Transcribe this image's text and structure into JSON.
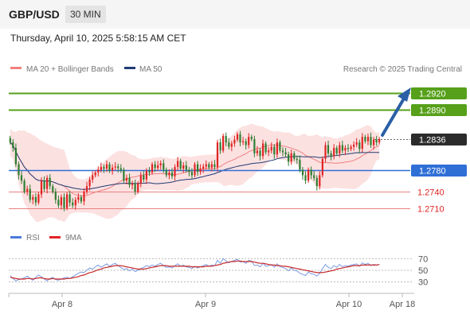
{
  "header": {
    "symbol": "GBP/USD",
    "timeframe": "30 MIN"
  },
  "timestamp": "Thursday, April 10, 2025 5:58:15 AM CET",
  "legend": {
    "ma20": "MA 20 + Bollinger Bands",
    "ma50": "MA 50",
    "credit": "Research © 2025 Trading Central"
  },
  "rsi_legend": {
    "rsi": "RSI",
    "ma9": "9MA"
  },
  "colors": {
    "up": "#e02424",
    "down": "#2e7d32",
    "resistance": "#56a01a",
    "support": "#2f6fd6",
    "bollinger": "#fcdcdc",
    "ma20": "#f08080",
    "ma50": "#1f3b73",
    "arrow": "#2b5fa6"
  },
  "chart_data": [
    {
      "type": "candlestick",
      "levels": [
        {
          "label": "1.2920",
          "value": 1.292,
          "kind": "resistance"
        },
        {
          "label": "1.2890",
          "value": 1.289,
          "kind": "resistance"
        },
        {
          "label": "1.2836",
          "value": 1.2836,
          "kind": "last"
        },
        {
          "label": "1.2780",
          "value": 1.278,
          "kind": "support"
        },
        {
          "label": "1.2740",
          "value": 1.274,
          "kind": "minor-support"
        },
        {
          "label": "1.2710",
          "value": 1.271,
          "kind": "minor-support"
        }
      ],
      "x_ticks": [
        "Apr 8",
        "Apr 9",
        "Apr 10",
        "Apr 18"
      ],
      "series": [
        {
          "name": "MA 20 + Bollinger Bands"
        },
        {
          "name": "MA 50"
        }
      ],
      "ylim": [
        1.2695,
        1.2945
      ],
      "close": [
        1.283,
        1.282,
        1.279,
        1.277,
        1.276,
        1.274,
        1.2745,
        1.2725,
        1.273,
        1.272,
        1.2735,
        1.276,
        1.2745,
        1.2765,
        1.275,
        1.274,
        1.2725,
        1.2715,
        1.273,
        1.271,
        1.2735,
        1.272,
        1.2715,
        1.2725,
        1.273,
        1.2722,
        1.274,
        1.275,
        1.2762,
        1.277,
        1.2775,
        1.278,
        1.2785,
        1.2782,
        1.279,
        1.2778,
        1.2784,
        1.2786,
        1.2783,
        1.278,
        1.276,
        1.2765,
        1.2752,
        1.2755,
        1.274,
        1.2755,
        1.277,
        1.2762,
        1.2778,
        1.2775,
        1.279,
        1.2783,
        1.2788,
        1.2792,
        1.278,
        1.277,
        1.2775,
        1.2768,
        1.2785,
        1.2796,
        1.2782,
        1.2788,
        1.278,
        1.2776,
        1.277,
        1.279,
        1.2776,
        1.2782,
        1.2786,
        1.279,
        1.2784,
        1.279,
        1.2785,
        1.283,
        1.2815,
        1.2842,
        1.283,
        1.2822,
        1.2828,
        1.2835,
        1.2845,
        1.283,
        1.2832,
        1.2825,
        1.284,
        1.2836,
        1.281,
        1.2815,
        1.2805,
        1.2828,
        1.2812,
        1.2815,
        1.2822,
        1.2808,
        1.283,
        1.2815,
        1.2812,
        1.2808,
        1.2795,
        1.281,
        1.28,
        1.2798,
        1.278,
        1.277,
        1.276,
        1.278,
        1.277,
        1.2765,
        1.275,
        1.277,
        1.28,
        1.2825,
        1.281,
        1.2805,
        1.282,
        1.281,
        1.2825,
        1.2815,
        1.282,
        1.2818,
        1.2822,
        1.2826,
        1.283,
        1.2818,
        1.284,
        1.2832,
        1.284,
        1.2825,
        1.2835,
        1.283,
        1.2836
      ],
      "rsi": {
        "levels": [
          70,
          50,
          30
        ],
        "values": [
          41,
          36,
          32,
          34,
          35,
          37,
          40,
          36,
          33,
          38,
          42,
          39,
          35,
          32,
          36,
          38,
          34,
          33,
          35,
          37,
          38,
          36,
          39,
          42,
          45,
          47,
          46,
          50,
          54,
          52,
          56,
          59,
          55,
          58,
          61,
          57,
          60,
          62,
          58,
          55,
          51,
          53,
          49,
          52,
          48,
          50,
          53,
          55,
          58,
          56,
          59,
          57,
          60,
          62,
          58,
          55,
          56,
          54,
          58,
          61,
          57,
          59,
          56,
          55,
          53,
          57,
          54,
          56,
          58,
          60,
          57,
          59,
          58,
          67,
          62,
          70,
          66,
          63,
          65,
          67,
          69,
          64,
          65,
          62,
          67,
          66,
          58,
          59,
          56,
          62,
          57,
          58,
          60,
          55,
          61,
          56,
          55,
          53,
          49,
          54,
          50,
          49,
          45,
          43,
          41,
          47,
          44,
          43,
          40,
          45,
          53,
          60,
          55,
          53,
          58,
          55,
          60,
          56,
          58,
          57,
          59,
          60,
          61,
          57,
          63,
          60,
          62,
          58,
          60,
          59,
          60
        ],
        "ma9": [
          38,
          37,
          36,
          35,
          35,
          35,
          36,
          36,
          35,
          36,
          37,
          37,
          36,
          35,
          35,
          36,
          35,
          35,
          35,
          35,
          36,
          36,
          37,
          38,
          39,
          41,
          42,
          44,
          46,
          47,
          49,
          51,
          52,
          54,
          55,
          56,
          57,
          58,
          58,
          58,
          57,
          56,
          55,
          54,
          53,
          52,
          52,
          52,
          53,
          54,
          55,
          56,
          57,
          58,
          58,
          58,
          57,
          57,
          57,
          57,
          57,
          57,
          57,
          57,
          56,
          56,
          56,
          56,
          56,
          57,
          57,
          57,
          58,
          59,
          60,
          62,
          63,
          64,
          65,
          65,
          66,
          66,
          65,
          65,
          65,
          65,
          64,
          63,
          62,
          62,
          61,
          60,
          59,
          59,
          58,
          58,
          57,
          57,
          56,
          55,
          54,
          53,
          52,
          51,
          50,
          49,
          48,
          47,
          46,
          46,
          46,
          47,
          48,
          49,
          50,
          52,
          53,
          54,
          55,
          56,
          57,
          58,
          58,
          58,
          59,
          59,
          59,
          59,
          59,
          59,
          60
        ]
      }
    }
  ]
}
